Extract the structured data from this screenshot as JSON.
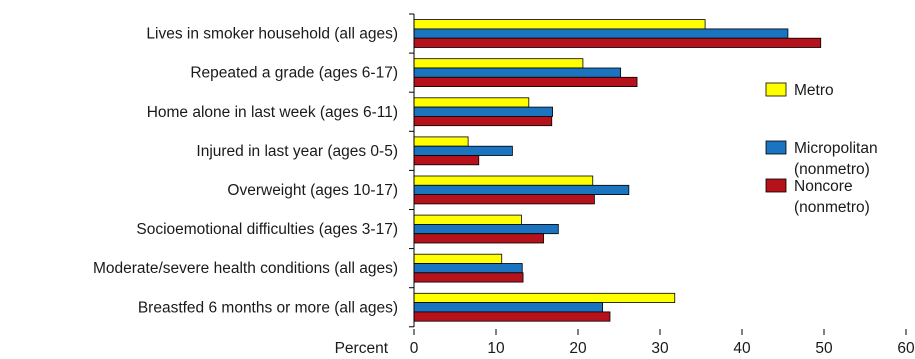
{
  "chart_data": {
    "type": "bar",
    "orientation": "horizontal",
    "categories": [
      "Lives in smoker household (all ages)",
      "Repeated a grade (ages 6-17)",
      "Home alone in last week (ages 6-11)",
      "Injured in last year (ages 0-5)",
      "Overweight (ages 10-17)",
      "Socioemotional difficulties (ages 3-17)",
      "Moderate/severe health conditions (all ages)",
      "Breastfed 6 months or more (all ages)"
    ],
    "series": [
      {
        "name": "Metro",
        "legend_lines": [
          "Metro"
        ],
        "color": "#ffff00",
        "values": [
          35.5,
          20.6,
          14.0,
          6.6,
          21.8,
          13.1,
          10.7,
          31.8
        ]
      },
      {
        "name": "Micropolitan (nonmetro)",
        "legend_lines": [
          "Micropolitan",
          "(nonmetro)"
        ],
        "color": "#1a74c0",
        "values": [
          45.6,
          25.2,
          16.9,
          12.0,
          26.2,
          17.6,
          13.2,
          23.0
        ]
      },
      {
        "name": "Noncore (nonmetro)",
        "legend_lines": [
          "Noncore",
          "(nonmetro)"
        ],
        "color": "#b5121b",
        "values": [
          49.6,
          27.2,
          16.8,
          7.9,
          22.0,
          15.8,
          13.3,
          23.9
        ]
      }
    ],
    "xlabel": "Percent",
    "ylabel": "",
    "xlim": [
      0,
      60
    ],
    "xticks": [
      0,
      10,
      20,
      30,
      40,
      50,
      60
    ],
    "grid": false,
    "legend_position": "right"
  }
}
